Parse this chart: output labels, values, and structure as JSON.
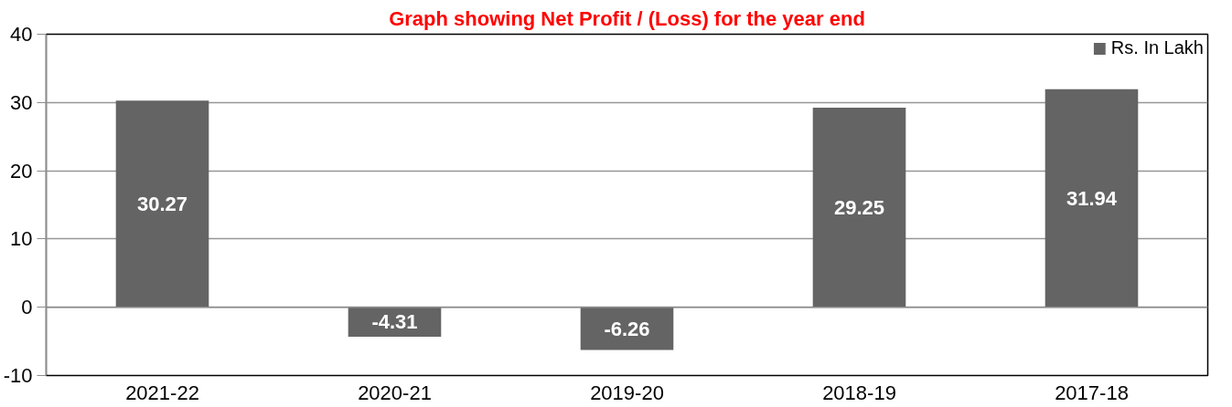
{
  "chart_data": {
    "type": "bar",
    "title": "Graph showing Net Profit / (Loss) for the year end",
    "categories": [
      "2021-22",
      "2020-21",
      "2019-20",
      "2018-19",
      "2017-18"
    ],
    "series": [
      {
        "name": "Rs. In Lakh",
        "color": "#646464",
        "values": [
          30.27,
          -4.31,
          -6.26,
          29.25,
          31.94
        ]
      }
    ],
    "ylim": [
      -10,
      40
    ],
    "yticks": [
      -10,
      0,
      10,
      20,
      30,
      40
    ],
    "grid": "y",
    "legend": "top right",
    "data_labels": true
  }
}
